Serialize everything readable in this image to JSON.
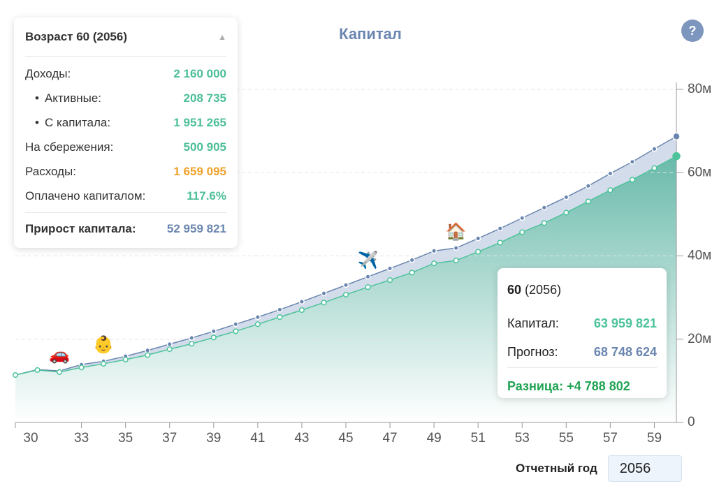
{
  "help": "?",
  "panel": {
    "title": "Возраст 60 (2056)",
    "toggle": "▲",
    "rows": [
      {
        "label": "Доходы:",
        "value": "2 160 000",
        "color": "#4cbf96"
      },
      {
        "label": "Активные:",
        "value": "208 735",
        "color": "#4cbf96"
      },
      {
        "label": "С капитала:",
        "value": "1 951 265",
        "color": "#4cbf96"
      },
      {
        "label": "На сбережения:",
        "value": "500 905",
        "color": "#4cbf96"
      },
      {
        "label": "Расходы:",
        "value": "1 659 095",
        "color": "#f0a22e"
      },
      {
        "label": "Оплачено капиталом:",
        "value": "117.6%",
        "color": "#4cbf96"
      }
    ],
    "total": {
      "label": "Прирост капитала:",
      "value": "52 959 821",
      "color": "#6a86b0"
    }
  },
  "chart_data": {
    "type": "line",
    "title": "Капитал",
    "x": [
      30,
      31,
      32,
      33,
      34,
      35,
      36,
      37,
      38,
      39,
      40,
      41,
      42,
      43,
      44,
      45,
      46,
      47,
      48,
      49,
      50,
      51,
      52,
      53,
      54,
      55,
      56,
      57,
      58,
      59,
      60
    ],
    "series": [
      {
        "name": "Прогноз",
        "color": "#6a86b0",
        "values": [
          11.4,
          12.7,
          12.4,
          13.9,
          14.7,
          15.9,
          17.3,
          18.8,
          20.3,
          21.9,
          23.6,
          25.3,
          27.1,
          29.0,
          31.0,
          33.0,
          35.0,
          37.0,
          39.0,
          41.2,
          41.9,
          44.2,
          46.6,
          49.1,
          51.6,
          54.1,
          56.8,
          59.8,
          62.6,
          65.7,
          68.7
        ]
      },
      {
        "name": "Капитал",
        "color": "#4cc39a",
        "values": [
          11.4,
          12.6,
          12.1,
          13.2,
          14.1,
          15.1,
          16.2,
          17.6,
          18.9,
          20.4,
          21.9,
          23.6,
          25.3,
          27.0,
          28.8,
          30.7,
          32.5,
          34.2,
          36.0,
          38.2,
          38.9,
          41.0,
          43.2,
          45.7,
          47.9,
          50.4,
          53.1,
          55.8,
          58.3,
          61.1,
          63.96
        ]
      }
    ],
    "xlim": [
      30,
      60
    ],
    "xticks": [
      30,
      33,
      35,
      37,
      39,
      41,
      43,
      45,
      47,
      49,
      51,
      53,
      55,
      57,
      59
    ],
    "ylim": [
      0,
      80
    ],
    "yticks": [
      0,
      {
        "value": 20,
        "label": "20м"
      },
      {
        "value": 40,
        "label": "40м"
      },
      {
        "value": 60,
        "label": "60м"
      },
      {
        "value": 80,
        "label": "80м"
      }
    ],
    "grid": true,
    "events": [
      {
        "x": 32,
        "label": "🚗"
      },
      {
        "x": 34,
        "label": "👶"
      },
      {
        "x": 46,
        "label": "✈️"
      },
      {
        "x": 50,
        "label": "🏠"
      }
    ],
    "tooltip": {
      "age": "60",
      "year": "(2056)",
      "rows": [
        {
          "label": "Капитал:",
          "value": "63 959 821",
          "color": "#4cc39a"
        },
        {
          "label": "Прогноз:",
          "value": "68 748 624",
          "color": "#6a86b0"
        }
      ],
      "diff": "Разница: +4 788 802"
    }
  },
  "footer": {
    "label": "Отчетный год",
    "value": "2056"
  }
}
